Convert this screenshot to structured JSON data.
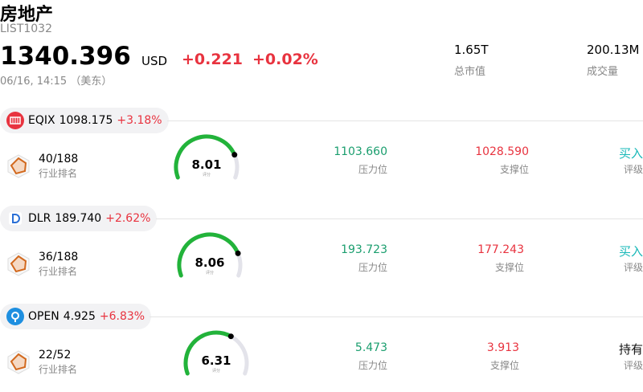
{
  "header": {
    "title": "房地产",
    "code": "LIST1032",
    "price": "1340.396",
    "currency": "USD",
    "change": "+0.221",
    "change_pct": "+0.02%",
    "time": "06/16, 14:15 （美东）",
    "stats": [
      {
        "value": "1.65T",
        "label": "总市值"
      },
      {
        "value": "200.13M",
        "label": "成交量"
      }
    ]
  },
  "stocks": [
    {
      "ticker": "EQIX",
      "price": "1098.175",
      "change_pct": "+3.18%",
      "rank": "40/188",
      "rank_label": "行业排名",
      "score": 8.01,
      "score_label": "评分",
      "resistance": "1103.660",
      "resistance_label": "压力位",
      "support": "1028.590",
      "support_label": "支撑位",
      "rating": "买入",
      "rating_label": "评级"
    },
    {
      "ticker": "DLR",
      "price": "189.740",
      "change_pct": "+2.62%",
      "rank": "36/188",
      "rank_label": "行业排名",
      "score": 8.06,
      "score_label": "评分",
      "resistance": "193.723",
      "resistance_label": "压力位",
      "support": "177.243",
      "support_label": "支撑位",
      "rating": "买入",
      "rating_label": "评级"
    },
    {
      "ticker": "OPEN",
      "price": "4.925",
      "change_pct": "+6.83%",
      "rank": "22/52",
      "rank_label": "行业排名",
      "score": 6.31,
      "score_label": "评分",
      "resistance": "5.473",
      "resistance_label": "压力位",
      "support": "3.913",
      "support_label": "支撑位",
      "rating": "持有",
      "rating_label": "评级"
    }
  ]
}
